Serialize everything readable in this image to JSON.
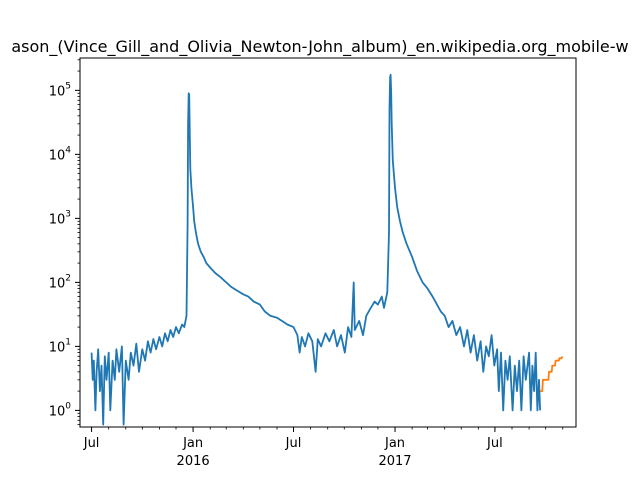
{
  "chart_data": {
    "type": "line",
    "title": "ason_(Vince_Gill_and_Olivia_Newton-John_album)_en.wikipedia.org_mobile-w",
    "xlabel": "",
    "ylabel": "",
    "y_scale": "log",
    "ylim": [
      0.55,
      320000
    ],
    "xlim": [
      "2015-06-10",
      "2017-11-25"
    ],
    "grid": false,
    "legend": "none",
    "x_ticks": [
      {
        "date": "2015-07-01",
        "label": "Jul",
        "sublabel": ""
      },
      {
        "date": "2016-01-01",
        "label": "Jan",
        "sublabel": "2016"
      },
      {
        "date": "2016-07-01",
        "label": "Jul",
        "sublabel": ""
      },
      {
        "date": "2017-01-01",
        "label": "Jan",
        "sublabel": "2017"
      },
      {
        "date": "2017-07-01",
        "label": "Jul",
        "sublabel": ""
      }
    ],
    "y_ticks": [
      {
        "value": 1,
        "base": "10",
        "exp": "0"
      },
      {
        "value": 10,
        "base": "10",
        "exp": "1"
      },
      {
        "value": 100,
        "base": "10",
        "exp": "2"
      },
      {
        "value": 1000,
        "base": "10",
        "exp": "3"
      },
      {
        "value": 10000,
        "base": "10",
        "exp": "4"
      },
      {
        "value": 100000,
        "base": "10",
        "exp": "5"
      }
    ],
    "series": [
      {
        "color": "#1f77b4",
        "points": [
          [
            "2015-07-01",
            8
          ],
          [
            "2015-07-03",
            3
          ],
          [
            "2015-07-05",
            6
          ],
          [
            "2015-07-08",
            1
          ],
          [
            "2015-07-10",
            4
          ],
          [
            "2015-07-13",
            9
          ],
          [
            "2015-07-16",
            2
          ],
          [
            "2015-07-19",
            5
          ],
          [
            "2015-07-22",
            0.6
          ],
          [
            "2015-07-25",
            7
          ],
          [
            "2015-07-28",
            3
          ],
          [
            "2015-08-01",
            8
          ],
          [
            "2015-08-04",
            1
          ],
          [
            "2015-08-08",
            6
          ],
          [
            "2015-08-12",
            3
          ],
          [
            "2015-08-15",
            9
          ],
          [
            "2015-08-20",
            4
          ],
          [
            "2015-08-25",
            10
          ],
          [
            "2015-08-28",
            0.6
          ],
          [
            "2015-09-01",
            6
          ],
          [
            "2015-09-06",
            3
          ],
          [
            "2015-09-10",
            8
          ],
          [
            "2015-09-15",
            5
          ],
          [
            "2015-09-20",
            11
          ],
          [
            "2015-09-25",
            4
          ],
          [
            "2015-10-01",
            9
          ],
          [
            "2015-10-06",
            6
          ],
          [
            "2015-10-11",
            12
          ],
          [
            "2015-10-16",
            8
          ],
          [
            "2015-10-21",
            13
          ],
          [
            "2015-10-26",
            9
          ],
          [
            "2015-11-01",
            14
          ],
          [
            "2015-11-06",
            10
          ],
          [
            "2015-11-11",
            16
          ],
          [
            "2015-11-16",
            12
          ],
          [
            "2015-11-21",
            18
          ],
          [
            "2015-11-26",
            14
          ],
          [
            "2015-12-01",
            20
          ],
          [
            "2015-12-06",
            16
          ],
          [
            "2015-12-12",
            22
          ],
          [
            "2015-12-16",
            20
          ],
          [
            "2015-12-20",
            30
          ],
          [
            "2015-12-22",
            800
          ],
          [
            "2015-12-23",
            30000
          ],
          [
            "2015-12-24",
            90000
          ],
          [
            "2015-12-25",
            85000
          ],
          [
            "2015-12-26",
            20000
          ],
          [
            "2015-12-27",
            6000
          ],
          [
            "2015-12-29",
            3000
          ],
          [
            "2016-01-01",
            1500
          ],
          [
            "2016-01-03",
            900
          ],
          [
            "2016-01-06",
            600
          ],
          [
            "2016-01-10",
            400
          ],
          [
            "2016-01-15",
            300
          ],
          [
            "2016-01-20",
            250
          ],
          [
            "2016-01-25",
            200
          ],
          [
            "2016-02-01",
            170
          ],
          [
            "2016-02-10",
            140
          ],
          [
            "2016-02-20",
            120
          ],
          [
            "2016-03-01",
            100
          ],
          [
            "2016-03-10",
            85
          ],
          [
            "2016-03-20",
            75
          ],
          [
            "2016-04-01",
            65
          ],
          [
            "2016-04-10",
            60
          ],
          [
            "2016-04-20",
            50
          ],
          [
            "2016-05-01",
            45
          ],
          [
            "2016-05-10",
            35
          ],
          [
            "2016-05-20",
            30
          ],
          [
            "2016-06-01",
            28
          ],
          [
            "2016-06-10",
            25
          ],
          [
            "2016-06-20",
            22
          ],
          [
            "2016-07-01",
            20
          ],
          [
            "2016-07-08",
            15
          ],
          [
            "2016-07-12",
            8
          ],
          [
            "2016-07-16",
            14
          ],
          [
            "2016-07-22",
            10
          ],
          [
            "2016-07-28",
            16
          ],
          [
            "2016-08-04",
            12
          ],
          [
            "2016-08-10",
            4
          ],
          [
            "2016-08-14",
            13
          ],
          [
            "2016-08-20",
            10
          ],
          [
            "2016-08-28",
            16
          ],
          [
            "2016-09-04",
            12
          ],
          [
            "2016-09-12",
            18
          ],
          [
            "2016-09-18",
            10
          ],
          [
            "2016-09-25",
            15
          ],
          [
            "2016-10-02",
            8
          ],
          [
            "2016-10-08",
            20
          ],
          [
            "2016-10-14",
            14
          ],
          [
            "2016-10-18",
            100
          ],
          [
            "2016-10-20",
            18
          ],
          [
            "2016-10-28",
            25
          ],
          [
            "2016-11-04",
            15
          ],
          [
            "2016-11-10",
            30
          ],
          [
            "2016-11-18",
            40
          ],
          [
            "2016-11-25",
            50
          ],
          [
            "2016-12-01",
            45
          ],
          [
            "2016-12-08",
            60
          ],
          [
            "2016-12-12",
            40
          ],
          [
            "2016-12-18",
            70
          ],
          [
            "2016-12-21",
            600
          ],
          [
            "2016-12-22",
            50000
          ],
          [
            "2016-12-23",
            160000
          ],
          [
            "2016-12-24",
            175000
          ],
          [
            "2016-12-25",
            90000
          ],
          [
            "2016-12-26",
            30000
          ],
          [
            "2016-12-28",
            8000
          ],
          [
            "2017-01-01",
            3000
          ],
          [
            "2017-01-05",
            1500
          ],
          [
            "2017-01-10",
            900
          ],
          [
            "2017-01-15",
            600
          ],
          [
            "2017-01-22",
            400
          ],
          [
            "2017-02-01",
            250
          ],
          [
            "2017-02-10",
            150
          ],
          [
            "2017-02-20",
            100
          ],
          [
            "2017-03-01",
            80
          ],
          [
            "2017-03-10",
            60
          ],
          [
            "2017-03-18",
            45
          ],
          [
            "2017-03-25",
            35
          ],
          [
            "2017-04-01",
            30
          ],
          [
            "2017-04-08",
            20
          ],
          [
            "2017-04-15",
            25
          ],
          [
            "2017-04-22",
            15
          ],
          [
            "2017-04-29",
            20
          ],
          [
            "2017-05-06",
            10
          ],
          [
            "2017-05-12",
            18
          ],
          [
            "2017-05-18",
            8
          ],
          [
            "2017-05-24",
            15
          ],
          [
            "2017-05-30",
            6
          ],
          [
            "2017-06-05",
            12
          ],
          [
            "2017-06-10",
            4
          ],
          [
            "2017-06-15",
            10
          ],
          [
            "2017-06-20",
            7
          ],
          [
            "2017-06-25",
            15
          ],
          [
            "2017-06-30",
            5
          ],
          [
            "2017-07-05",
            9
          ],
          [
            "2017-07-08",
            2
          ],
          [
            "2017-07-12",
            8
          ],
          [
            "2017-07-16",
            1
          ],
          [
            "2017-07-20",
            6
          ],
          [
            "2017-07-24",
            3
          ],
          [
            "2017-07-28",
            7
          ],
          [
            "2017-08-02",
            1
          ],
          [
            "2017-08-06",
            5
          ],
          [
            "2017-08-10",
            2
          ],
          [
            "2017-08-14",
            6
          ],
          [
            "2017-08-18",
            1
          ],
          [
            "2017-08-22",
            7
          ],
          [
            "2017-08-26",
            3
          ],
          [
            "2017-09-01",
            8
          ],
          [
            "2017-09-04",
            1
          ],
          [
            "2017-09-07",
            5
          ],
          [
            "2017-09-10",
            2
          ],
          [
            "2017-09-13",
            8
          ],
          [
            "2017-09-16",
            1
          ],
          [
            "2017-09-19",
            3
          ],
          [
            "2017-09-21",
            1
          ]
        ]
      },
      {
        "color": "#ff7f0e",
        "points": [
          [
            "2017-09-21",
            2
          ],
          [
            "2017-09-25",
            2
          ],
          [
            "2017-09-26",
            3
          ],
          [
            "2017-10-06",
            3
          ],
          [
            "2017-10-07",
            4
          ],
          [
            "2017-10-12",
            4
          ],
          [
            "2017-10-13",
            5
          ],
          [
            "2017-10-18",
            5
          ],
          [
            "2017-10-19",
            6
          ],
          [
            "2017-10-25",
            6
          ],
          [
            "2017-10-26",
            6.5
          ],
          [
            "2017-10-30",
            6.5
          ],
          [
            "2017-10-31",
            7
          ]
        ]
      }
    ]
  }
}
